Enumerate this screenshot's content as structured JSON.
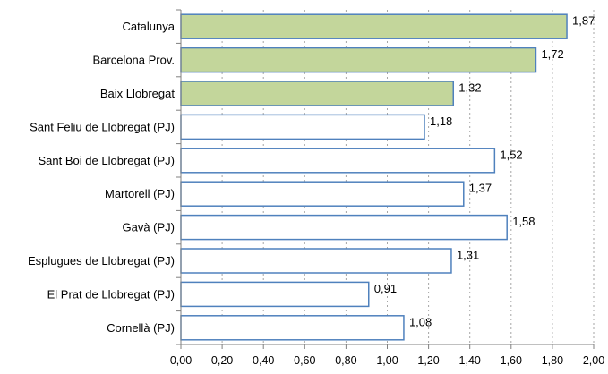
{
  "chart_data": {
    "type": "bar",
    "orientation": "horizontal",
    "categories": [
      "Catalunya",
      "Barcelona Prov.",
      "Baix Llobregat",
      "Sant Feliu de Llobregat (PJ)",
      "Sant Boi de Llobregat (PJ)",
      "Martorell (PJ)",
      "Gavà (PJ)",
      "Esplugues de Llobregat (PJ)",
      "El Prat de Llobregat (PJ)",
      "Cornellà (PJ)"
    ],
    "values": [
      1.87,
      1.72,
      1.32,
      1.18,
      1.52,
      1.37,
      1.58,
      1.31,
      0.91,
      1.08
    ],
    "value_labels": [
      "1,87",
      "1,72",
      "1,32",
      "1,18",
      "1,52",
      "1,37",
      "1,58",
      "1,31",
      "0,91",
      "1,08"
    ],
    "highlighted": [
      true,
      true,
      true,
      false,
      false,
      false,
      false,
      false,
      false,
      false
    ],
    "xlim": [
      0,
      2.0
    ],
    "xticks": [
      0,
      0.2,
      0.4,
      0.6,
      0.8,
      1.0,
      1.2,
      1.4,
      1.6,
      1.8,
      2.0
    ],
    "xtick_labels": [
      "0,00",
      "0,20",
      "0,40",
      "0,60",
      "0,80",
      "1,00",
      "1,20",
      "1,40",
      "1,60",
      "1,80",
      "2,00"
    ],
    "grid": "vertical dashed",
    "colors": {
      "highlight_fill": "#c3d69b",
      "default_fill": "#ffffff",
      "bar_border": "#4f81bd",
      "axis": "#808080",
      "grid": "#a6a6a6"
    }
  }
}
